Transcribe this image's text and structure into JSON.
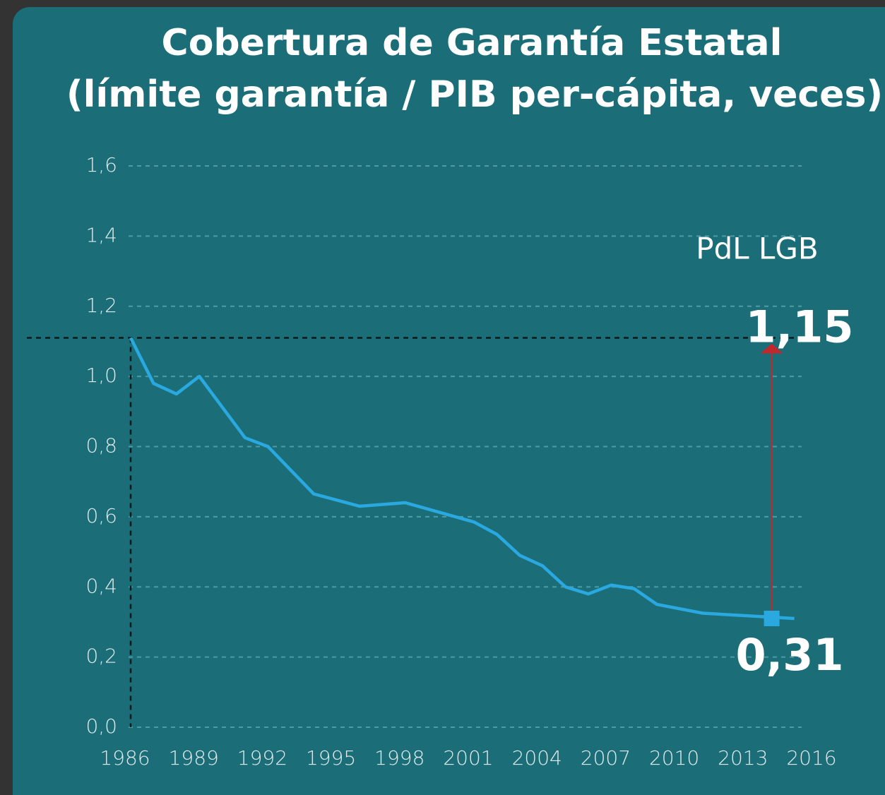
{
  "chart_data": {
    "type": "line",
    "title": "Cobertura de Garantía Estatal",
    "subtitle": "(límite garantía / PIB per-cápita, veces)",
    "x": [
      1986,
      1987,
      1988,
      1989,
      1991,
      1992,
      1994,
      1996,
      1998,
      2001,
      2002,
      2003,
      2004,
      2005,
      2006,
      2007,
      2008,
      2009,
      2011,
      2015
    ],
    "series": [
      {
        "name": "Cobertura",
        "color": "#2aa8e0",
        "values": [
          1.11,
          0.98,
          0.95,
          1.0,
          0.825,
          0.8,
          0.665,
          0.63,
          0.64,
          0.585,
          0.55,
          0.49,
          0.46,
          0.4,
          0.38,
          0.405,
          0.395,
          0.35,
          0.325,
          0.31
        ],
        "value_labels": [
          null,
          null,
          null,
          null,
          null,
          null,
          null,
          null,
          null,
          null,
          null,
          null,
          null,
          null,
          null,
          null,
          null,
          null,
          null,
          "0,31"
        ]
      }
    ],
    "xlim": [
      1986,
      2016
    ],
    "xticks": [
      1986,
      1989,
      1992,
      1995,
      1998,
      2001,
      2004,
      2007,
      2010,
      2013,
      2016
    ],
    "ylim": [
      0,
      1.6
    ],
    "yticks": [
      {
        "value": 0,
        "label": "0,0"
      },
      {
        "value": 0.2,
        "label": "0,2"
      },
      {
        "value": 0.4,
        "label": "0,4"
      },
      {
        "value": 0.6,
        "label": "0,6"
      },
      {
        "value": 0.8,
        "label": "0,8"
      },
      {
        "value": 1.0,
        "label": "1,0"
      },
      {
        "value": 1.2,
        "label": "1,2"
      },
      {
        "value": 1.4,
        "label": "1,4"
      },
      {
        "value": 1.6,
        "label": "1,6"
      }
    ],
    "grid": true,
    "target": {
      "label": "PdL LGB",
      "value": 1.15,
      "value_label": "1,15",
      "color": "#c0282e"
    }
  }
}
